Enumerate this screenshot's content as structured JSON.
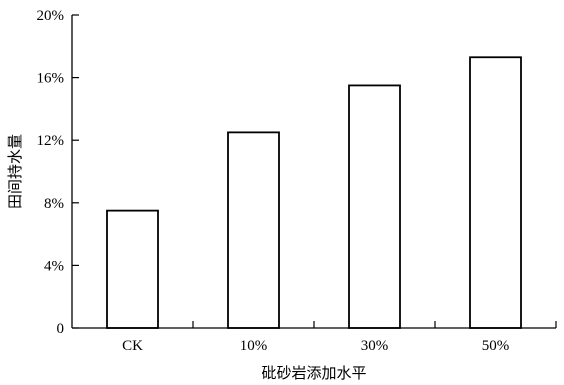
{
  "chart_data": {
    "type": "bar",
    "title": "",
    "xlabel": "砒砂岩添加水平",
    "ylabel": "田间持水量",
    "categories": [
      "CK",
      "10%",
      "30%",
      "50%"
    ],
    "values": [
      7.5,
      12.5,
      15.5,
      17.3
    ],
    "value_unit": "%",
    "ylim": [
      0,
      20
    ],
    "yticks": [
      0,
      4,
      8,
      12,
      16,
      20
    ],
    "ytick_labels": [
      "0",
      "4%",
      "8%",
      "12%",
      "16%",
      "20%"
    ],
    "grid": false,
    "legend": "none",
    "bar_fill": "#ffffff",
    "bar_stroke": "#000000"
  }
}
